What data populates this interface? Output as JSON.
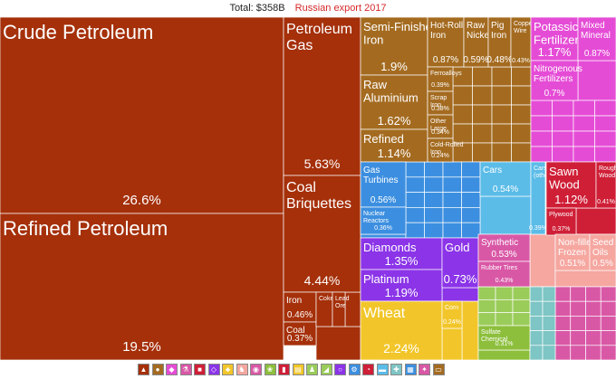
{
  "header": {
    "total": "Total: $358B",
    "subtitle": "Russian export 2017"
  },
  "colors": {
    "mineral": "#a5300a",
    "metals": "#a46b20",
    "chemicals": "#e54cd6",
    "machines": "#3c8fe0",
    "transportation": "#5bbce8",
    "wood": "#cf1f37",
    "stones": "#8b34e8",
    "vegetable": "#f2c62a",
    "animal_food": "#f5a7a0",
    "plastics": "#d958a6",
    "foodstuffs": "#8dbf3c",
    "instruments": "#7ec5c5",
    "textiles": "#9acc5a"
  },
  "legend_icons": [
    "mineral-icon",
    "metals-icon",
    "chemicals-icon",
    "flask-icon",
    "stone-icon",
    "gem-icon",
    "wheat-icon",
    "animal-icon",
    "plastic-icon",
    "leaf-icon",
    "wood-icon",
    "paper-icon",
    "shirt-icon",
    "shoe-icon",
    "ring-icon",
    "gear-icon",
    "gauge-icon",
    "car-icon",
    "tool-icon",
    "box-icon",
    "art-icon",
    "sofa-icon"
  ],
  "chart_data": {
    "type": "treemap",
    "title": "Total: $358B",
    "subtitle": "Russian export 2017",
    "items": [
      {
        "label": "Crude Petroleum",
        "share": 26.6,
        "value_text": "26.6%",
        "category": "mineral",
        "size": "xl"
      },
      {
        "label": "Refined Petroleum",
        "share": 19.5,
        "value_text": "19.5%",
        "category": "mineral",
        "size": "xl"
      },
      {
        "label": "Petroleum Gas",
        "share": 5.63,
        "value_text": "5.63%",
        "category": "mineral",
        "size": "l"
      },
      {
        "label": "Coal Briquettes",
        "share": 4.44,
        "value_text": "4.44%",
        "category": "mineral",
        "size": "l"
      },
      {
        "label": "Iron Ore",
        "share": 0.46,
        "value_text": "0.46%",
        "category": "mineral",
        "size": "s"
      },
      {
        "label": "Coal Tar Oil",
        "share": 0.37,
        "value_text": "0.37%",
        "category": "mineral",
        "size": "s"
      },
      {
        "label": "Coke",
        "share": 0.18,
        "value_text": "",
        "category": "mineral",
        "size": "xs"
      },
      {
        "label": "Lead Ore",
        "share": 0.17,
        "value_text": "",
        "category": "mineral",
        "size": "xs"
      },
      {
        "label": "Semi-Finished Iron",
        "share": 1.9,
        "value_text": "1.9%",
        "category": "metals",
        "size": "m"
      },
      {
        "label": "Hot-Rolled Iron",
        "share": 0.87,
        "value_text": "0.87%",
        "category": "metals",
        "size": "s"
      },
      {
        "label": "Raw Nickel",
        "share": 0.59,
        "value_text": "0.59%",
        "category": "metals",
        "size": "s"
      },
      {
        "label": "Pig Iron",
        "share": 0.48,
        "value_text": "0.48%",
        "category": "metals",
        "size": "s"
      },
      {
        "label": "Copper Wire",
        "share": 0.43,
        "value_text": "0.43%",
        "category": "metals",
        "size": "xs"
      },
      {
        "label": "Raw Aluminium",
        "share": 1.62,
        "value_text": "1.62%",
        "category": "metals",
        "size": "m"
      },
      {
        "label": "Refined Copper",
        "share": 1.14,
        "value_text": "1.14%",
        "category": "metals",
        "size": "m"
      },
      {
        "label": "Ferroalloys",
        "share": 0.39,
        "value_text": "0.39%",
        "category": "metals",
        "size": "xs"
      },
      {
        "label": "Scrap Iron",
        "share": 0.38,
        "value_text": "0.38%",
        "category": "metals",
        "size": "xs"
      },
      {
        "label": "Other Large Iron Pipes",
        "share": 0.34,
        "value_text": "0.34%",
        "category": "metals",
        "size": "xs"
      },
      {
        "label": "Cold-Rolled Iron",
        "share": 0.24,
        "value_text": "0.24%",
        "category": "metals",
        "size": "xs"
      },
      {
        "label": "Potassic Fertilizers",
        "share": 1.17,
        "value_text": "1.17%",
        "category": "chemicals",
        "size": "m"
      },
      {
        "label": "Mixed Mineral or Chemical Fertilizers",
        "share": 0.87,
        "value_text": "0.87%",
        "category": "chemicals",
        "size": "s"
      },
      {
        "label": "Nitrogenous Fertilizers",
        "share": 0.7,
        "value_text": "0.7%",
        "category": "chemicals",
        "size": "s"
      },
      {
        "label": "Gas Turbines",
        "share": 0.56,
        "value_text": "0.56%",
        "category": "machines",
        "size": "s"
      },
      {
        "label": "Nuclear Reactors",
        "share": 0.36,
        "value_text": "0.36%",
        "category": "machines",
        "size": "xs"
      },
      {
        "label": "Cars",
        "share": 0.54,
        "value_text": "0.54%",
        "category": "transportation",
        "size": "s"
      },
      {
        "label": "Cars (other)",
        "share": 0.39,
        "value_text": "0.39%",
        "category": "transportation",
        "size": "xs"
      },
      {
        "label": "Sawn Wood",
        "share": 1.12,
        "value_text": "1.12%",
        "category": "wood",
        "size": "m"
      },
      {
        "label": "Rough Wood",
        "share": 0.41,
        "value_text": "0.41%",
        "category": "wood",
        "size": "xs"
      },
      {
        "label": "Plywood",
        "share": 0.37,
        "value_text": "0.37%",
        "category": "wood",
        "size": "xs"
      },
      {
        "label": "Diamonds",
        "share": 1.35,
        "value_text": "1.35%",
        "category": "stones",
        "size": "m"
      },
      {
        "label": "Platinum",
        "share": 1.19,
        "value_text": "1.19%",
        "category": "stones",
        "size": "m"
      },
      {
        "label": "Gold",
        "share": 0.73,
        "value_text": "0.73%",
        "category": "stones",
        "size": "m"
      },
      {
        "label": "Wheat",
        "share": 2.24,
        "value_text": "2.24%",
        "category": "vegetable",
        "size": "l"
      },
      {
        "label": "Corn",
        "share": 0.24,
        "value_text": "0.24%",
        "category": "vegetable",
        "size": "xs"
      },
      {
        "label": "Non-fillet Frozen Fish",
        "share": 0.51,
        "value_text": "0.51%",
        "category": "animal_food",
        "size": "s"
      },
      {
        "label": "Seed Oils",
        "share": 0.5,
        "value_text": "0.5%",
        "category": "animal_food",
        "size": "s"
      },
      {
        "label": "Synthetic Rubber",
        "share": 0.53,
        "value_text": "0.53%",
        "category": "plastics",
        "size": "s"
      },
      {
        "label": "Rubber Tires",
        "share": 0.43,
        "value_text": "0.43%",
        "category": "plastics",
        "size": "xs"
      },
      {
        "label": "Sulfate Chemical Woodpulp",
        "share": 0.31,
        "value_text": "0.31%",
        "category": "foodstuffs",
        "size": "xs"
      }
    ]
  }
}
